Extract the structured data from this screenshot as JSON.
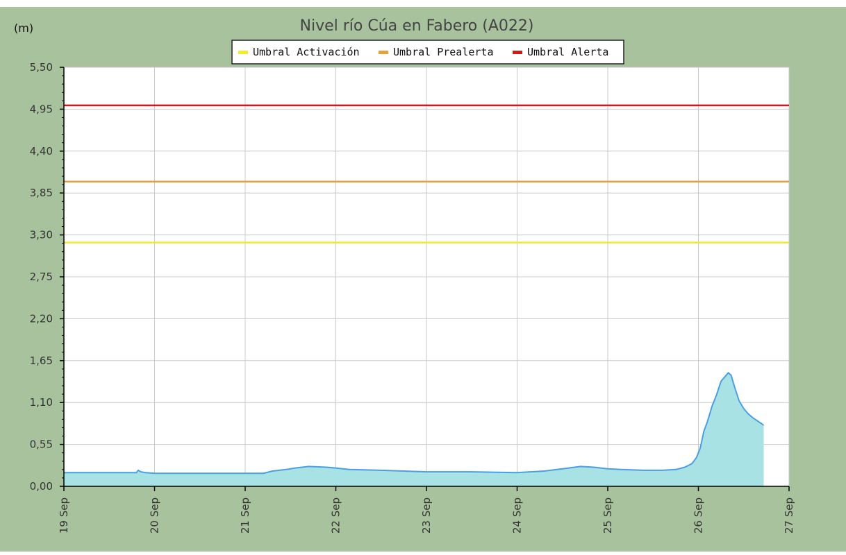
{
  "chart_data": {
    "type": "area",
    "title": "Nivel río Cúa en Fabero  (A022)",
    "ylabel": "(m)",
    "xlabel": "",
    "ylim": [
      0,
      5.5
    ],
    "xlim": [
      0,
      8
    ],
    "y_ticks": [
      "0,00",
      "0,55",
      "1,10",
      "1,65",
      "2,20",
      "2,75",
      "3,30",
      "3,85",
      "4,40",
      "4,95",
      "5,50"
    ],
    "y_tick_values": [
      0,
      0.55,
      1.1,
      1.65,
      2.2,
      2.75,
      3.3,
      3.85,
      4.4,
      4.95,
      5.5
    ],
    "x_ticks": [
      "19 Sep",
      "20 Sep",
      "21 Sep",
      "22 Sep",
      "23 Sep",
      "24 Sep",
      "25 Sep",
      "26 Sep",
      "27 Sep"
    ],
    "x_tick_values": [
      0,
      1,
      2,
      3,
      4,
      5,
      6,
      7,
      8
    ],
    "grid": true,
    "legend_position": "top",
    "colors": {
      "outer_background": "#a8c29d",
      "plot_background": "#ffffff",
      "grid": "#c8c8cc",
      "area_fill": "#a9e2e4",
      "area_line": "#4a9fe0",
      "axis": "#000000",
      "text": "#333333",
      "title_text": "#444444"
    },
    "thresholds": [
      {
        "name": "Umbral Activación",
        "value": 3.2,
        "color": "#f2ea2c"
      },
      {
        "name": "Umbral Prealerta",
        "value": 4.0,
        "color": "#e7a03c"
      },
      {
        "name": "Umbral Alerta",
        "value": 5.0,
        "color": "#d21818"
      }
    ],
    "series": [
      {
        "type": "area",
        "x": [
          0,
          0.5,
          0.8,
          0.82,
          0.85,
          0.9,
          1.0,
          1.5,
          2.0,
          2.2,
          2.3,
          2.45,
          2.55,
          2.7,
          2.9,
          3.0,
          3.15,
          3.5,
          4.0,
          4.5,
          5.0,
          5.3,
          5.5,
          5.7,
          5.85,
          6.0,
          6.15,
          6.4,
          6.6,
          6.75,
          6.85,
          6.93,
          6.98,
          7.02,
          7.06,
          7.1,
          7.15,
          7.2,
          7.25,
          7.3,
          7.33,
          7.36,
          7.4,
          7.45,
          7.5,
          7.55,
          7.6,
          7.65,
          7.7,
          7.72
        ],
        "y": [
          0.18,
          0.18,
          0.18,
          0.21,
          0.19,
          0.18,
          0.17,
          0.17,
          0.17,
          0.17,
          0.2,
          0.22,
          0.24,
          0.26,
          0.25,
          0.24,
          0.22,
          0.21,
          0.19,
          0.19,
          0.18,
          0.2,
          0.23,
          0.26,
          0.25,
          0.23,
          0.22,
          0.21,
          0.21,
          0.22,
          0.25,
          0.3,
          0.38,
          0.5,
          0.72,
          0.85,
          1.05,
          1.2,
          1.38,
          1.45,
          1.49,
          1.46,
          1.3,
          1.12,
          1.02,
          0.95,
          0.9,
          0.86,
          0.82,
          0.8
        ]
      }
    ]
  }
}
